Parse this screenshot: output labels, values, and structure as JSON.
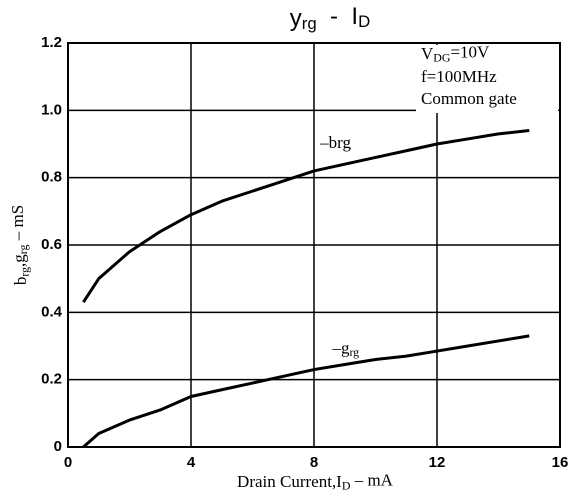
{
  "chart_data": {
    "type": "line",
    "title": [
      "y",
      "rg",
      "  -  I",
      "D"
    ],
    "x_label": [
      "Drain Current,I",
      "D",
      " – mA"
    ],
    "y_label": [
      "b",
      "rg",
      ",g",
      "rg",
      " – mS"
    ],
    "annotations": {
      "vdg": [
        "V",
        "DG",
        "=10V"
      ],
      "freq": "f=100MHz",
      "mode": "Common gate"
    },
    "x": [
      0.5,
      1,
      2,
      3,
      4,
      5,
      6,
      7,
      8,
      9,
      10,
      11,
      12,
      13,
      14,
      15
    ],
    "series": [
      {
        "name": [
          "–brg"
        ],
        "color": "#000000",
        "values": [
          0.43,
          0.5,
          0.58,
          0.64,
          0.69,
          0.73,
          0.76,
          0.79,
          0.82,
          0.84,
          0.86,
          0.88,
          0.9,
          0.915,
          0.93,
          0.94
        ]
      },
      {
        "name": [
          "–g",
          "rg"
        ],
        "color": "#000000",
        "values": [
          0,
          0.04,
          0.08,
          0.11,
          0.15,
          0.17,
          0.19,
          0.21,
          0.23,
          0.245,
          0.26,
          0.27,
          0.285,
          0.3,
          0.315,
          0.33
        ]
      }
    ],
    "xlim": [
      0,
      16
    ],
    "ylim": [
      0,
      1.2
    ],
    "xticks": [
      0,
      4,
      8,
      12,
      16
    ],
    "yticks": [
      0,
      0.2,
      0.4,
      0.6,
      0.8,
      {
        "value": 1,
        "label": "1.0"
      },
      1.2
    ],
    "grid": true
  }
}
